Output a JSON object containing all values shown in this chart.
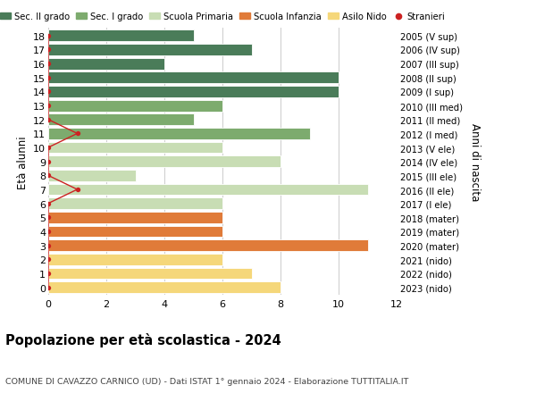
{
  "ages": [
    18,
    17,
    16,
    15,
    14,
    13,
    12,
    11,
    10,
    9,
    8,
    7,
    6,
    5,
    4,
    3,
    2,
    1,
    0
  ],
  "years": [
    "2005 (V sup)",
    "2006 (IV sup)",
    "2007 (III sup)",
    "2008 (II sup)",
    "2009 (I sup)",
    "2010 (III med)",
    "2011 (II med)",
    "2012 (I med)",
    "2013 (V ele)",
    "2014 (IV ele)",
    "2015 (III ele)",
    "2016 (II ele)",
    "2017 (I ele)",
    "2018 (mater)",
    "2019 (mater)",
    "2020 (mater)",
    "2021 (nido)",
    "2022 (nido)",
    "2023 (nido)"
  ],
  "values": [
    5,
    7,
    4,
    10,
    10,
    6,
    5,
    9,
    6,
    8,
    3,
    11,
    6,
    6,
    6,
    11,
    6,
    7,
    8
  ],
  "bar_colors": [
    "#4a7c59",
    "#4a7c59",
    "#4a7c59",
    "#4a7c59",
    "#4a7c59",
    "#7dab6e",
    "#7dab6e",
    "#7dab6e",
    "#c8ddb4",
    "#c8ddb4",
    "#c8ddb4",
    "#c8ddb4",
    "#c8ddb4",
    "#e07b39",
    "#e07b39",
    "#e07b39",
    "#f5d77a",
    "#f5d77a",
    "#f5d77a"
  ],
  "stranieri_ages": [
    18,
    17,
    16,
    15,
    14,
    13,
    12,
    11,
    10,
    9,
    8,
    7,
    6,
    5,
    4,
    3,
    2,
    1,
    0
  ],
  "stranieri_values": [
    0,
    0,
    0,
    0,
    0,
    0,
    0,
    1,
    0,
    0,
    0,
    1,
    0,
    0,
    0,
    0,
    0,
    0,
    0
  ],
  "legend_labels": [
    "Sec. II grado",
    "Sec. I grado",
    "Scuola Primaria",
    "Scuola Infanzia",
    "Asilo Nido",
    "Stranieri"
  ],
  "legend_colors": [
    "#4a7c59",
    "#7dab6e",
    "#c8ddb4",
    "#e07b39",
    "#f5d77a",
    "#cc2222"
  ],
  "title": "Popolazione per età scolastica - 2024",
  "subtitle": "COMUNE DI CAVAZZO CARNICO (UD) - Dati ISTAT 1° gennaio 2024 - Elaborazione TUTTITALIA.IT",
  "ylabel_left": "Età alunni",
  "ylabel_right": "Anni di nascita",
  "bg_color": "#ffffff",
  "grid_color": "#cccccc",
  "bar_edge_color": "#ffffff",
  "stranieri_line_color": "#cc2222",
  "stranieri_dot_color": "#cc2222",
  "xlim": [
    0,
    12
  ],
  "xticks": [
    0,
    2,
    4,
    6,
    8,
    10,
    12
  ]
}
